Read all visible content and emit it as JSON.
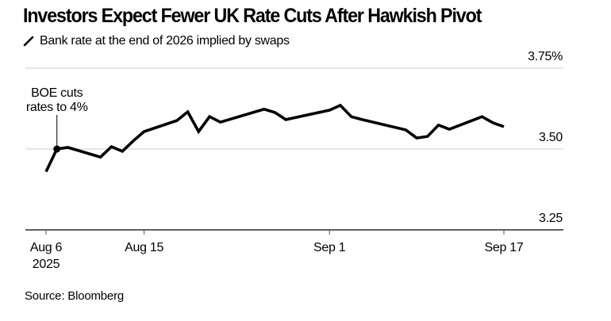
{
  "header": {
    "title": "Investors Expect Fewer UK Rate Cuts After Hawkish Pivot",
    "legend_label": "Bank rate at the end of 2026 implied by swaps",
    "legend_icon": "line-series-icon"
  },
  "footer": {
    "source": "Source: Bloomberg"
  },
  "colors": {
    "line": "#000000",
    "grid": "#e6e6e6",
    "axis": "#000000"
  },
  "chart_data": {
    "type": "line",
    "title": "Investors Expect Fewer UK Rate Cuts After Hawkish Pivot",
    "subtitle": "Bank rate at the end of 2026 implied by swaps",
    "xlabel": "",
    "ylabel": "",
    "ylim": [
      3.25,
      3.75
    ],
    "y_ticks": [
      {
        "value": 3.75,
        "label": "3.75%"
      },
      {
        "value": 3.5,
        "label": "3.50"
      },
      {
        "value": 3.25,
        "label": "3.25"
      }
    ],
    "x_range": [
      "2025-08-06",
      "2025-09-22"
    ],
    "x_ticks": [
      {
        "date": "2025-08-06",
        "label": "Aug 6",
        "sublabel": "2025"
      },
      {
        "date": "2025-08-15",
        "label": "Aug 15",
        "sublabel": ""
      },
      {
        "date": "2025-09-01",
        "label": "Sep 1",
        "sublabel": ""
      },
      {
        "date": "2025-09-17",
        "label": "Sep 17",
        "sublabel": ""
      }
    ],
    "grid": true,
    "legend": "top-left",
    "series": [
      {
        "name": "Bank rate at the end of 2026 implied by swaps",
        "x": [
          "2025-08-06",
          "2025-08-07",
          "2025-08-08",
          "2025-08-11",
          "2025-08-12",
          "2025-08-13",
          "2025-08-14",
          "2025-08-15",
          "2025-08-18",
          "2025-08-19",
          "2025-08-20",
          "2025-08-21",
          "2025-08-22",
          "2025-08-26",
          "2025-08-27",
          "2025-08-28",
          "2025-09-01",
          "2025-09-02",
          "2025-09-03",
          "2025-09-04",
          "2025-09-08",
          "2025-09-09",
          "2025-09-10",
          "2025-09-11",
          "2025-09-12",
          "2025-09-15",
          "2025-09-16",
          "2025-09-17"
        ],
        "values": [
          3.43,
          3.5,
          3.505,
          3.475,
          3.507,
          3.493,
          3.525,
          3.554,
          3.588,
          3.615,
          3.554,
          3.6,
          3.583,
          3.623,
          3.613,
          3.591,
          3.62,
          3.635,
          3.6,
          3.591,
          3.559,
          3.534,
          3.539,
          3.574,
          3.561,
          3.6,
          3.581,
          3.569
        ]
      }
    ],
    "annotations": [
      {
        "date": "2025-08-07",
        "value": 3.5,
        "text_lines": [
          "BOE cuts",
          "rates to 4%"
        ]
      }
    ]
  }
}
